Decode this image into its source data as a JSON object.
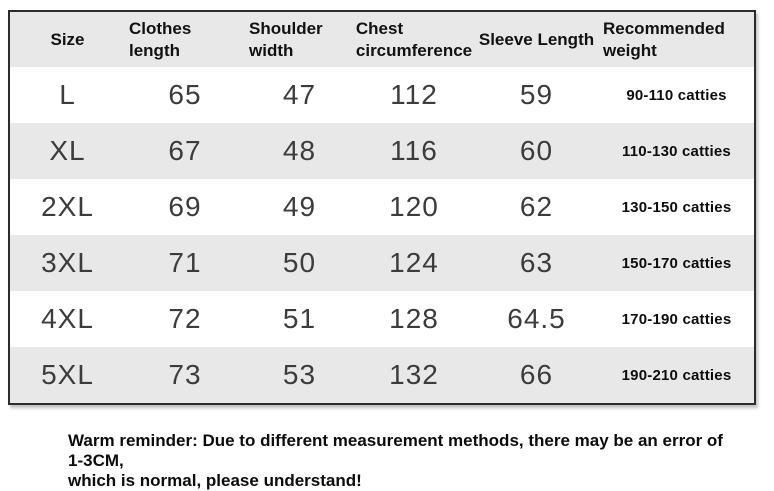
{
  "colors": {
    "header_bg": "#e8e8e8",
    "row_alt_bg": "#e8e8e8",
    "row_bg": "#ffffff",
    "border": "#2c2c2c",
    "header_text": "#121212",
    "value_text": "#3c3c3c"
  },
  "size_chart": {
    "columns": [
      "Size",
      "Clothes length",
      "Shoulder width",
      "Chest circumference",
      "Sleeve Length",
      "Recommended weight"
    ],
    "rows": [
      {
        "size": "L",
        "clothes_length": "65",
        "shoulder_width": "47",
        "chest_circumference": "112",
        "sleeve_length": "59",
        "recommended_weight": "90-110 catties"
      },
      {
        "size": "XL",
        "clothes_length": "67",
        "shoulder_width": "48",
        "chest_circumference": "116",
        "sleeve_length": "60",
        "recommended_weight": "110-130 catties"
      },
      {
        "size": "2XL",
        "clothes_length": "69",
        "shoulder_width": "49",
        "chest_circumference": "120",
        "sleeve_length": "62",
        "recommended_weight": "130-150 catties"
      },
      {
        "size": "3XL",
        "clothes_length": "71",
        "shoulder_width": "50",
        "chest_circumference": "124",
        "sleeve_length": "63",
        "recommended_weight": "150-170 catties"
      },
      {
        "size": "4XL",
        "clothes_length": "72",
        "shoulder_width": "51",
        "chest_circumference": "128",
        "sleeve_length": "64.5",
        "recommended_weight": "170-190 catties"
      },
      {
        "size": "5XL",
        "clothes_length": "73",
        "shoulder_width": "53",
        "chest_circumference": "132",
        "sleeve_length": "66",
        "recommended_weight": "190-210 catties"
      }
    ]
  },
  "reminder": {
    "text": "Warm reminder: Due to different measurement methods, there may be an error of 1-3CM, which is normal, please understand!",
    "lines": [
      "Warm reminder: Due to different measurement methods, there may be an error of 1-3CM,",
      "which is normal, please understand!"
    ]
  }
}
